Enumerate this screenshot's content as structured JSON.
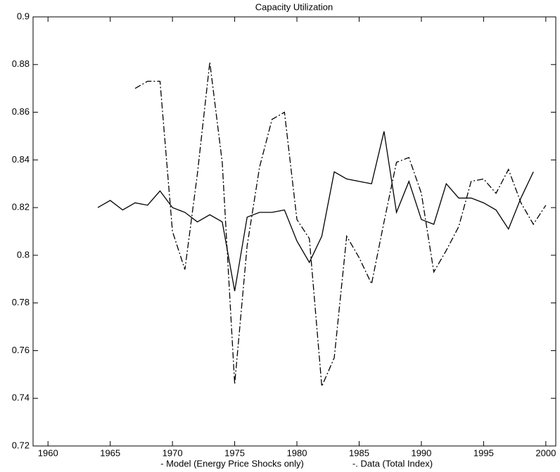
{
  "chart_data": {
    "type": "line",
    "title": "Capacity Utilization",
    "x": [
      1964,
      1965,
      1966,
      1967,
      1968,
      1969,
      1970,
      1971,
      1972,
      1973,
      1974,
      1975,
      1976,
      1977,
      1978,
      1979,
      1980,
      1981,
      1982,
      1983,
      1984,
      1985,
      1986,
      1987,
      1988,
      1989,
      1990,
      1991,
      1992,
      1993,
      1994,
      1995,
      1996,
      1997,
      1998,
      1999,
      2000
    ],
    "series": [
      {
        "name": "- Model (Energy Price Shocks only)",
        "color": "#000000",
        "dash": "solid",
        "values": [
          0.82,
          0.823,
          0.819,
          0.822,
          0.821,
          0.827,
          0.82,
          0.818,
          0.814,
          0.817,
          0.814,
          0.785,
          0.816,
          0.818,
          0.818,
          0.819,
          0.806,
          0.797,
          0.808,
          0.835,
          0.832,
          0.831,
          0.83,
          0.852,
          0.818,
          0.831,
          0.815,
          0.813,
          0.83,
          0.824,
          0.824,
          0.822,
          0.819,
          0.811,
          0.824,
          0.835,
          null
        ]
      },
      {
        "name": "-. Data (Total Index)",
        "color": "#000000",
        "dash": "dashdot",
        "values": [
          null,
          null,
          null,
          0.87,
          0.873,
          0.873,
          0.81,
          0.794,
          0.834,
          0.881,
          0.839,
          0.746,
          0.804,
          0.837,
          0.857,
          0.86,
          0.815,
          0.807,
          0.745,
          0.757,
          0.808,
          0.799,
          0.788,
          0.814,
          0.839,
          0.841,
          0.826,
          0.793,
          0.802,
          0.812,
          0.831,
          0.832,
          0.826,
          0.836,
          0.822,
          0.813,
          0.821
        ]
      }
    ],
    "xlim": [
      1958.8,
      2000.8
    ],
    "xticks": [
      1960,
      1965,
      1970,
      1975,
      1980,
      1985,
      1990,
      1995,
      2000
    ],
    "ylim": [
      0.72,
      0.9
    ],
    "yticks": [
      0.72,
      0.74,
      0.76,
      0.78,
      0.8,
      0.82,
      0.84,
      0.86,
      0.88,
      0.9
    ]
  }
}
